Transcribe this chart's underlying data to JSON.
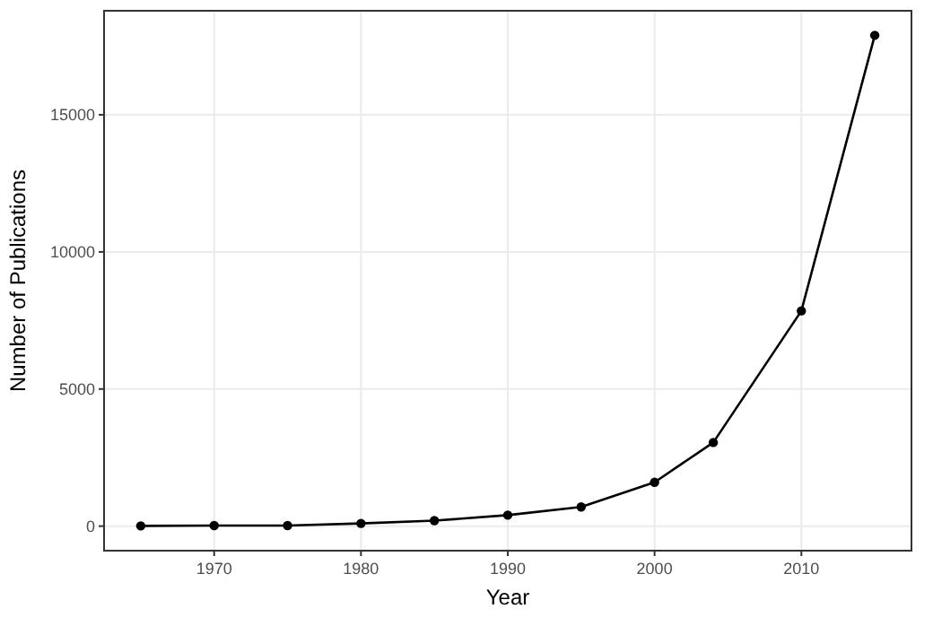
{
  "chart_data": {
    "type": "line",
    "xlabel": "Year",
    "ylabel": "Number of Publications",
    "x": [
      1965,
      1970,
      1975,
      1980,
      1985,
      1990,
      1995,
      2000,
      2004,
      2010,
      2015
    ],
    "series": [
      {
        "color": "#000000",
        "values": [
          10,
          20,
          20,
          100,
          200,
          400,
          700,
          1600,
          3050,
          7850,
          17900
        ]
      }
    ],
    "xlim": [
      1962.5,
      2017.5
    ],
    "xticks": [
      1970,
      1980,
      1990,
      2000,
      2010
    ],
    "ylim": [
      -895,
      18795
    ],
    "yticks": [
      0,
      5000,
      10000,
      15000
    ],
    "grid": true,
    "marker": "circle",
    "line_style": "solid"
  }
}
